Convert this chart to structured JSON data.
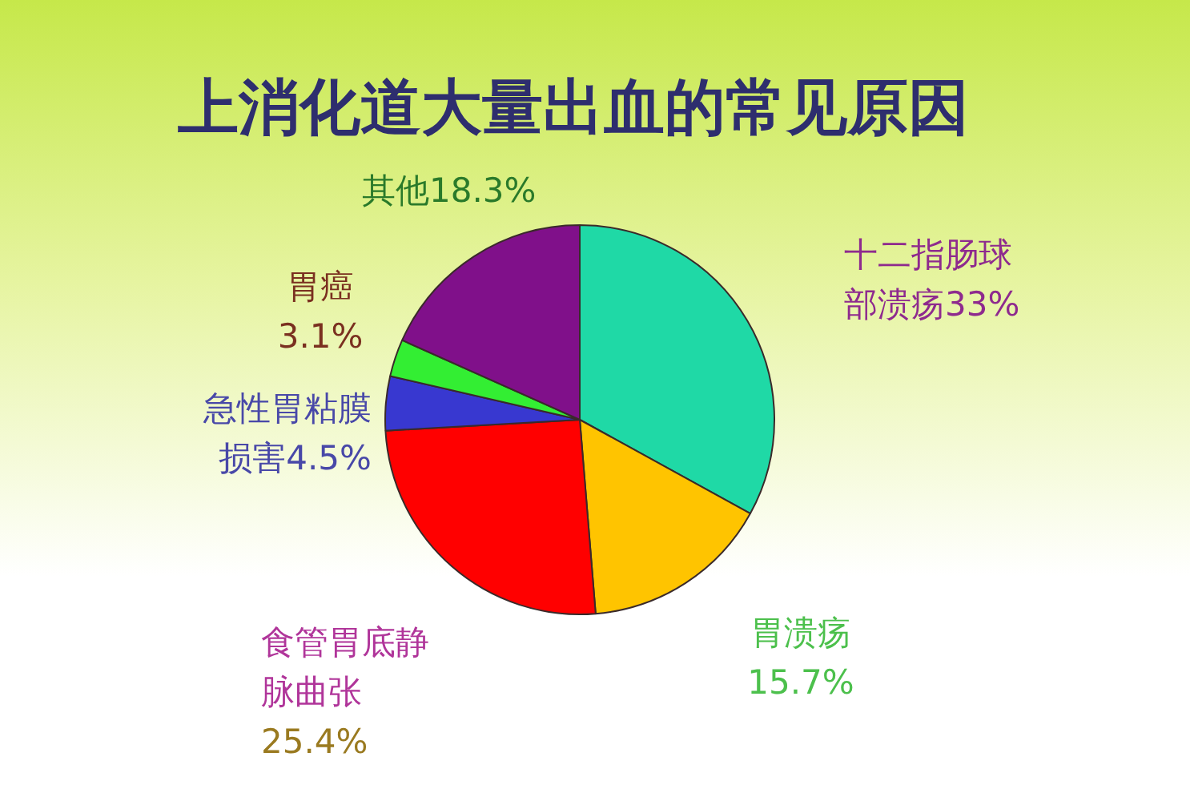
{
  "chart_data": {
    "type": "pie",
    "title": "上消化道大量出血的常见原因",
    "categories": [
      "十二指肠球部溃疡",
      "胃溃疡",
      "食管胃底静脉曲张",
      "急性胃粘膜损害",
      "胃癌",
      "其他"
    ],
    "values": [
      33,
      15.7,
      25.4,
      4.5,
      3.1,
      18.3
    ],
    "colors": [
      "#1fd9a6",
      "#ffc400",
      "#ff0000",
      "#3838d0",
      "#33ee33",
      "#80108a"
    ],
    "value_labels": [
      "33%",
      "15.7%",
      "25.4%",
      "4.5%",
      "3.1%",
      "18.3%"
    ]
  }
}
